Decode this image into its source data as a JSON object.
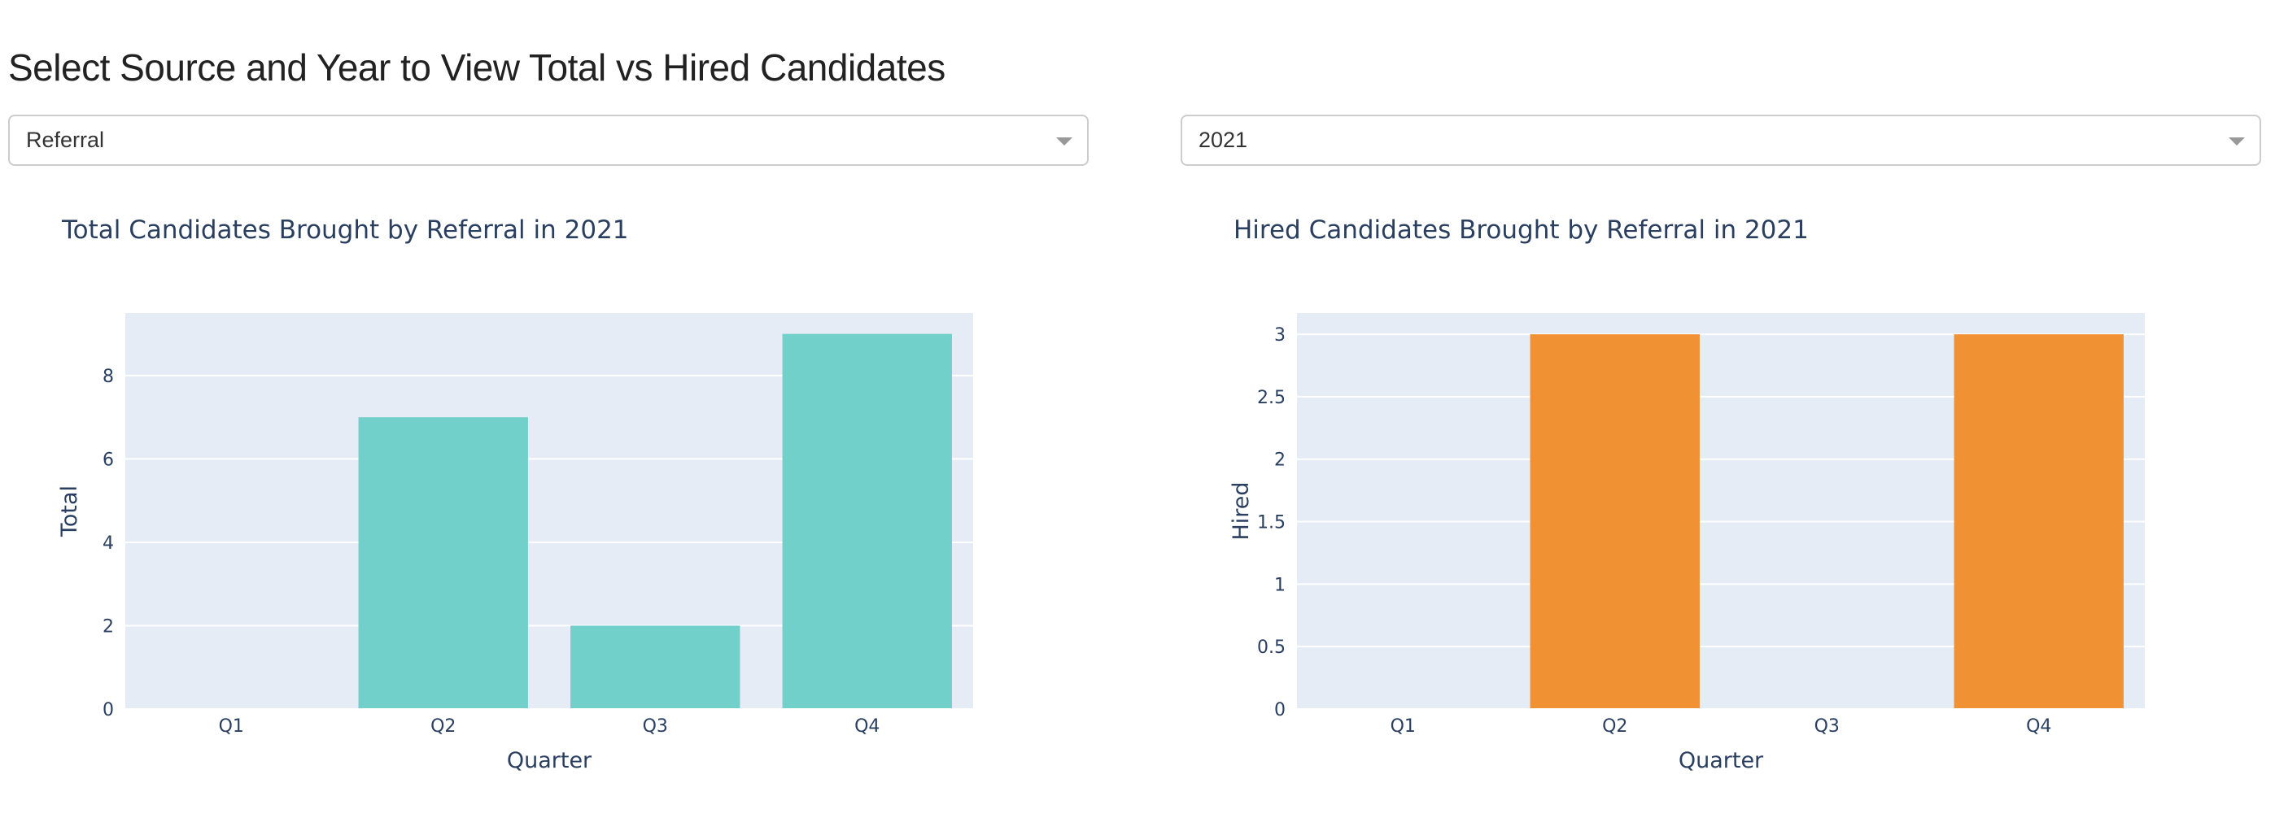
{
  "header": {
    "title": "Select Source and Year to View Total vs Hired Candidates"
  },
  "controls": {
    "source": {
      "selected": "Referral"
    },
    "year": {
      "selected": "2021"
    }
  },
  "colors": {
    "total_bar": "#72d0cb",
    "hired_bar": "#f09134",
    "plot_bg": "#e5ecf6",
    "grid": "#ffffff",
    "text": "#2a3f5f"
  },
  "chart_data": [
    {
      "type": "bar",
      "title": "Total Candidates Brought by Referral in 2021",
      "xlabel": "Quarter",
      "ylabel": "Total",
      "categories": [
        "Q1",
        "Q2",
        "Q3",
        "Q4"
      ],
      "values": [
        0,
        7,
        2,
        9
      ],
      "ylim": [
        0,
        9.5
      ],
      "yticks": [
        0,
        2,
        4,
        6,
        8
      ],
      "ytick_labels": [
        "0",
        "2",
        "4",
        "6",
        "8"
      ],
      "grid": true,
      "color": "#72d0cb"
    },
    {
      "type": "bar",
      "title": "Hired Candidates Brought by Referral in 2021",
      "xlabel": "Quarter",
      "ylabel": "Hired",
      "categories": [
        "Q1",
        "Q2",
        "Q3",
        "Q4"
      ],
      "values": [
        0,
        3,
        0,
        3
      ],
      "ylim": [
        0,
        3.17
      ],
      "yticks": [
        0,
        0.5,
        1,
        1.5,
        2,
        2.5,
        3
      ],
      "ytick_labels": [
        "0",
        "0.5",
        "1",
        "1.5",
        "2",
        "2.5",
        "3"
      ],
      "grid": true,
      "color": "#f09134"
    }
  ]
}
